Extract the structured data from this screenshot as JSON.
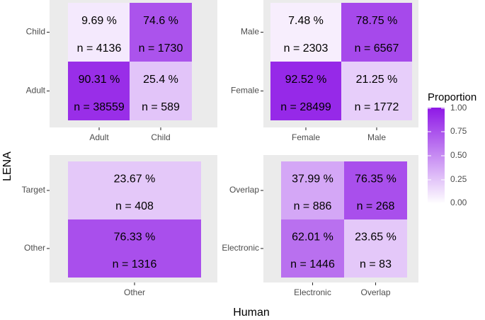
{
  "chart_data": {
    "type": "heatmap",
    "xlabel": "Human",
    "ylabel": "LENA",
    "legend": {
      "title": "Proportion",
      "ticks": [
        "1.00",
        "0.75",
        "0.50",
        "0.25",
        "0.00"
      ],
      "tick_values": [
        1.0,
        0.75,
        0.5,
        0.25,
        0.0
      ],
      "low_color": "#ffffff",
      "high_color": "#8e18e6",
      "placement": "right"
    },
    "panels": [
      {
        "x_categories": [
          "Adult",
          "Child"
        ],
        "y_categories": [
          "Child",
          "Adult"
        ],
        "cells": [
          {
            "x": "Adult",
            "y": "Child",
            "proportion": 0.0969,
            "pct_label": "9.69 %",
            "n_label": "n = 4136"
          },
          {
            "x": "Child",
            "y": "Child",
            "proportion": 0.746,
            "pct_label": "74.6 %",
            "n_label": "n = 1730"
          },
          {
            "x": "Adult",
            "y": "Adult",
            "proportion": 0.9031,
            "pct_label": "90.31 %",
            "n_label": "n = 38559"
          },
          {
            "x": "Child",
            "y": "Adult",
            "proportion": 0.254,
            "pct_label": "25.4 %",
            "n_label": "n = 589"
          }
        ]
      },
      {
        "x_categories": [
          "Female",
          "Male"
        ],
        "y_categories": [
          "Male",
          "Female"
        ],
        "cells": [
          {
            "x": "Female",
            "y": "Male",
            "proportion": 0.0748,
            "pct_label": "7.48 %",
            "n_label": "n = 2303"
          },
          {
            "x": "Male",
            "y": "Male",
            "proportion": 0.7875,
            "pct_label": "78.75 %",
            "n_label": "n = 6567"
          },
          {
            "x": "Female",
            "y": "Female",
            "proportion": 0.9252,
            "pct_label": "92.52 %",
            "n_label": "n = 28499"
          },
          {
            "x": "Male",
            "y": "Female",
            "proportion": 0.2125,
            "pct_label": "21.25 %",
            "n_label": "n = 1772"
          }
        ]
      },
      {
        "x_categories": [
          "Other"
        ],
        "y_categories": [
          "Target",
          "Other"
        ],
        "cells": [
          {
            "x": "Other",
            "y": "Target",
            "proportion": 0.2367,
            "pct_label": "23.67 %",
            "n_label": "n = 408"
          },
          {
            "x": "Other",
            "y": "Other",
            "proportion": 0.7633,
            "pct_label": "76.33 %",
            "n_label": "n = 1316"
          }
        ]
      },
      {
        "x_categories": [
          "Electronic",
          "Overlap"
        ],
        "y_categories": [
          "Overlap",
          "Electronic"
        ],
        "cells": [
          {
            "x": "Electronic",
            "y": "Overlap",
            "proportion": 0.3799,
            "pct_label": "37.99 %",
            "n_label": "n = 886"
          },
          {
            "x": "Overlap",
            "y": "Overlap",
            "proportion": 0.7635,
            "pct_label": "76.35 %",
            "n_label": "n = 268"
          },
          {
            "x": "Electronic",
            "y": "Electronic",
            "proportion": 0.6201,
            "pct_label": "62.01 %",
            "n_label": "n = 1446"
          },
          {
            "x": "Overlap",
            "y": "Electronic",
            "proportion": 0.2365,
            "pct_label": "23.65 %",
            "n_label": "n = 83"
          }
        ]
      }
    ]
  }
}
